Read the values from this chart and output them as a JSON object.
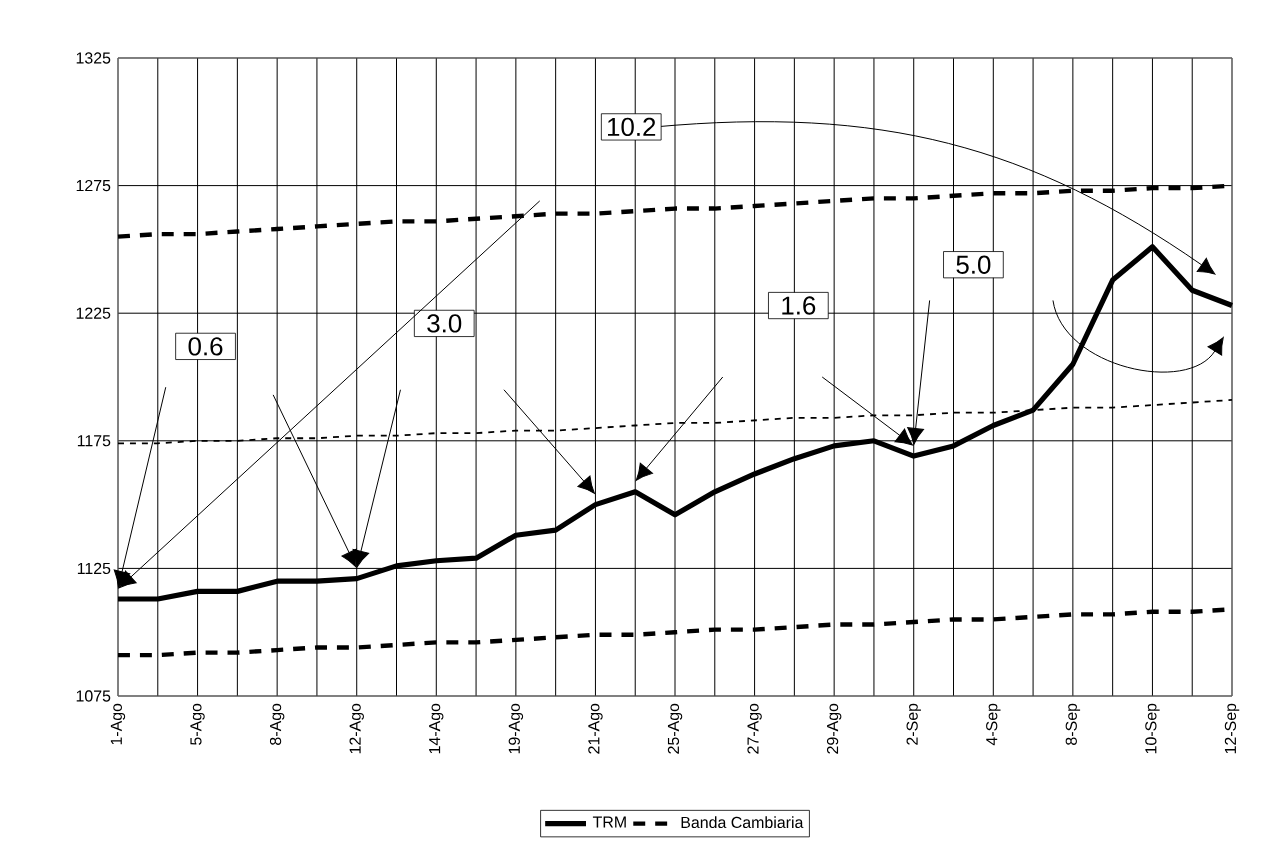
{
  "chart_data": {
    "type": "line",
    "categories": [
      "1-Ago",
      null,
      "5-Ago",
      null,
      "8-Ago",
      null,
      "12-Ago",
      null,
      "14-Ago",
      null,
      "19-Ago",
      null,
      "21-Ago",
      null,
      "25-Ago",
      null,
      "27-Ago",
      null,
      "29-Ago",
      null,
      "2-Sep",
      null,
      "4-Sep",
      null,
      "8-Sep",
      null,
      "10-Sep",
      null,
      "12-Sep"
    ],
    "series": [
      {
        "name": "TRM",
        "color": "#000000",
        "line_style": "solid",
        "values": [
          1113,
          1113,
          1116,
          1116,
          1120,
          1120,
          1121,
          1126,
          1128,
          1129,
          1138,
          1140,
          1150,
          1155,
          1146,
          1155,
          1162,
          1168,
          1173,
          1175,
          1169,
          1173,
          1181,
          1187,
          1205,
          1238,
          1251,
          1234,
          1228
        ]
      },
      {
        "name": "Banda Cambiaria",
        "color": "#000000",
        "line_style": "dashed",
        "values": [
          1255,
          1256,
          1256,
          1257,
          1258,
          1259,
          1260,
          1261,
          1261,
          1262,
          1263,
          1264,
          1264,
          1265,
          1266,
          1266,
          1267,
          1268,
          1269,
          1270,
          1270,
          1271,
          1272,
          1272,
          1273,
          1273,
          1274,
          1274,
          1275
        ]
      },
      {
        "color": "#000000",
        "line_style": "dashed",
        "values": [
          1091,
          1091,
          1092,
          1092,
          1093,
          1094,
          1094,
          1095,
          1096,
          1096,
          1097,
          1098,
          1099,
          1099,
          1100,
          1101,
          1101,
          1102,
          1103,
          1103,
          1104,
          1105,
          1105,
          1106,
          1107,
          1107,
          1108,
          1108,
          1109
        ]
      },
      {
        "color": "#000000",
        "line_style": "dotted",
        "values": [
          1174,
          1174,
          1175,
          1175,
          1176,
          1176,
          1177,
          1177,
          1178,
          1178,
          1179,
          1179,
          1180,
          1181,
          1182,
          1182,
          1183,
          1184,
          1184,
          1185,
          1185,
          1186,
          1186,
          1187,
          1188,
          1188,
          1189,
          1190,
          1191
        ]
      }
    ],
    "ylim": [
      1075,
      1325
    ],
    "yticks": [
      1075,
      1125,
      1175,
      1225,
      1275,
      1325
    ],
    "grid": true,
    "legend": "bottom",
    "marker": "none",
    "annotations": [
      "0.6",
      "3.0",
      "10.2",
      "1.6",
      "5.0"
    ]
  }
}
